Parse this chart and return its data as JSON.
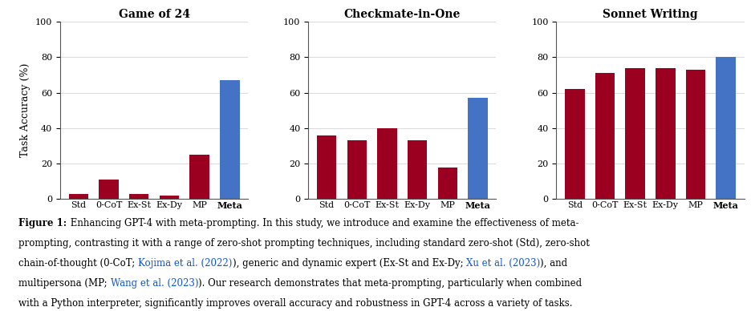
{
  "categories": [
    "Std",
    "0-CoT",
    "Ex-St",
    "Ex-Dy",
    "MP",
    "Meta"
  ],
  "game24": [
    3,
    11,
    3,
    2,
    25,
    67
  ],
  "checkmate": [
    36,
    33,
    40,
    33,
    18,
    57
  ],
  "sonnet": [
    62,
    71,
    74,
    74,
    73,
    80
  ],
  "bar_colors_dark": [
    "#9B0020",
    "#9B0020",
    "#9B0020",
    "#9B0020",
    "#9B0020",
    "#4472C4"
  ],
  "titles": [
    "Game of 24",
    "Checkmate-in-One",
    "Sonnet Writing"
  ],
  "ylabel": "Task Accuracy (%)",
  "ylim": [
    0,
    100
  ],
  "yticks": [
    0,
    20,
    40,
    60,
    80,
    100
  ],
  "link_color": "#1155CC",
  "caption_lines": [
    [
      {
        "text": "Figure 1:",
        "bold": true,
        "color": "black"
      },
      {
        "text": " Enhancing GPT-4 with meta-prompting. In this study, we introduce and examine the effectiveness of meta-",
        "bold": false,
        "color": "black"
      }
    ],
    [
      {
        "text": "prompting, contrasting it with a range of zero-shot prompting techniques, including standard zero-shot (Std), zero-shot",
        "bold": false,
        "color": "black"
      }
    ],
    [
      {
        "text": "chain-of-thought (0-CoT; ",
        "bold": false,
        "color": "black"
      },
      {
        "text": "Kojima et al. (2022)",
        "bold": false,
        "color": "#1155CC"
      },
      {
        "text": "), generic and dynamic expert (Ex-St and Ex-Dy; ",
        "bold": false,
        "color": "black"
      },
      {
        "text": "Xu et al. (2023)",
        "bold": false,
        "color": "#1155CC"
      },
      {
        "text": "), and",
        "bold": false,
        "color": "black"
      }
    ],
    [
      {
        "text": "multipersona (MP; ",
        "bold": false,
        "color": "black"
      },
      {
        "text": "Wang et al. (2023)",
        "bold": false,
        "color": "#1155CC"
      },
      {
        "text": "). Our research demonstrates that meta-prompting, particularly when combined",
        "bold": false,
        "color": "black"
      }
    ],
    [
      {
        "text": "with a Python interpreter, significantly improves overall accuracy and robustness in GPT-4 across a variety of tasks.",
        "bold": false,
        "color": "black"
      }
    ]
  ]
}
